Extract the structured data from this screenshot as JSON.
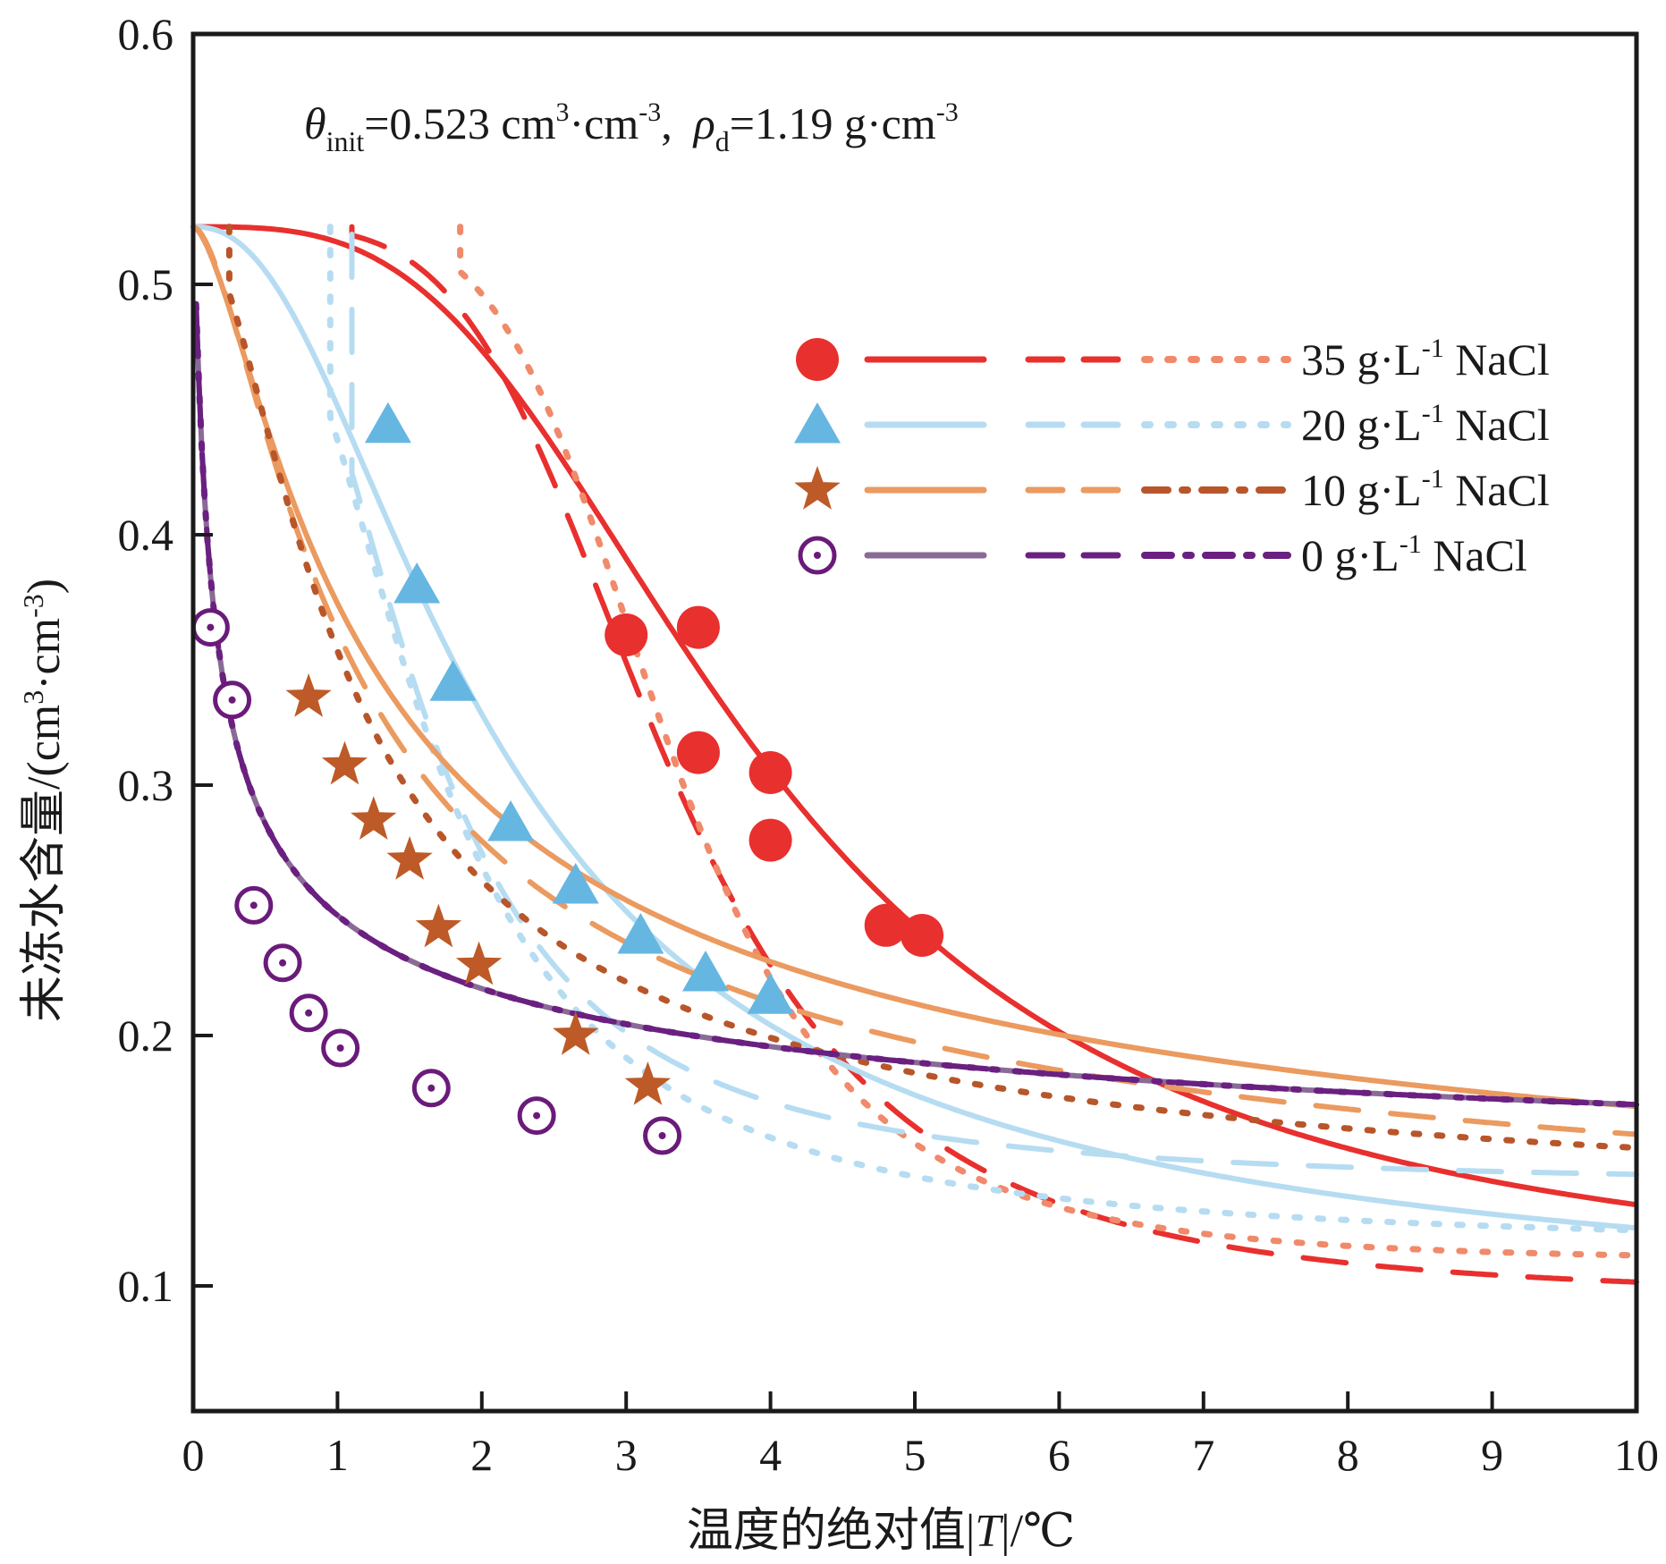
{
  "chart_data": {
    "type": "scatter",
    "xlabel": "温度的绝对值|T|/℃",
    "xlabel_parts": [
      "温度的绝对值|",
      "T",
      "|/℃"
    ],
    "ylabel": "未冻水含量/(cm³·cm⁻³)",
    "ylabel_parts": [
      "未冻水含量/(cm",
      "3",
      "·cm",
      "-3",
      ")"
    ],
    "xlim": [
      0,
      10
    ],
    "ylim": [
      0.05,
      0.6
    ],
    "xticks": [
      0,
      1,
      2,
      3,
      4,
      5,
      6,
      7,
      8,
      9,
      10
    ],
    "xtick_labels": [
      "0",
      "1",
      "2",
      "3",
      "4",
      "5",
      "6",
      "7",
      "8",
      "9",
      "10"
    ],
    "yticks": [
      0.1,
      0.2,
      0.3,
      0.4,
      0.5,
      0.6
    ],
    "ytick_labels": [
      "0.1",
      "0.2",
      "0.3",
      "0.4",
      "0.5",
      "0.6"
    ],
    "annotation": {
      "text": "θinit=0.523 cm³·cm⁻³, ρd=1.19 g·cm⁻³",
      "theta": "θ",
      "theta_sub": "init",
      "theta_val": "=0.523 cm",
      "sup1": "3",
      "mid": "·cm",
      "sup2": "-3",
      "sep": ",",
      "rho": "ρ",
      "rho_sub": "d",
      "rho_val": "=1.19 g·cm",
      "sup3": "-3"
    },
    "legend": {
      "placement": "upper-right"
    },
    "series": [
      {
        "name": "35 g·L⁻¹ NaCl",
        "label_parts": [
          "35 g·L",
          "-1",
          " NaCl"
        ],
        "marker": "circle",
        "marker_color": "#e8302e",
        "line_colors": [
          "#e8302e",
          "#e8302e",
          "#f08a6a"
        ],
        "points": [
          [
            3.0,
            0.36
          ],
          [
            3.5,
            0.363
          ],
          [
            3.5,
            0.313
          ],
          [
            4.0,
            0.305
          ],
          [
            4.0,
            0.278
          ],
          [
            4.8,
            0.244
          ],
          [
            5.05,
            0.24
          ]
        ],
        "fits": [
          {
            "style": "solid",
            "model": "vg",
            "params": {
              "r": 0.095,
              "s": 0.523,
              "a": 0.3,
              "n": 3.2
            }
          },
          {
            "style": "dashed",
            "model": "vg",
            "params": {
              "r": 0.095,
              "s": 0.523,
              "a": 0.33,
              "n": 4.5
            },
            "start": 1.1,
            "startY": 0.523
          },
          {
            "style": "dotted",
            "model": "vg",
            "params": {
              "r": 0.11,
              "s": 0.523,
              "a": 0.32,
              "n": 5.5
            },
            "start": 1.85,
            "startY": 0.523
          }
        ]
      },
      {
        "name": "20 g·L⁻¹ NaCl",
        "label_parts": [
          "20 g·L",
          "-1",
          " NaCl"
        ],
        "marker": "triangle",
        "marker_color": "#66b6e2",
        "line_colors": [
          "#b6dcf2",
          "#b6dcf2",
          "#b6dcf2"
        ],
        "points": [
          [
            1.35,
            0.444
          ],
          [
            1.55,
            0.38
          ],
          [
            1.8,
            0.341
          ],
          [
            2.2,
            0.285
          ],
          [
            2.65,
            0.26
          ],
          [
            3.1,
            0.24
          ],
          [
            3.55,
            0.225
          ],
          [
            4.0,
            0.216
          ]
        ],
        "fits": [
          {
            "style": "solid",
            "model": "vg",
            "params": {
              "r": 0.085,
              "s": 0.523,
              "a": 0.65,
              "n": 2.3
            }
          },
          {
            "style": "dashed",
            "model": "vg",
            "params": {
              "r": 0.14,
              "s": 0.523,
              "a": 0.75,
              "n": 3.2
            },
            "start": 1.1,
            "startY": 0.52
          },
          {
            "style": "dotted",
            "model": "vg",
            "params": {
              "r": 0.115,
              "s": 0.523,
              "a": 0.75,
              "n": 3.0
            },
            "start": 0.95,
            "startY": 0.523
          }
        ]
      },
      {
        "name": "10 g·L⁻¹ NaCl",
        "label_parts": [
          "10 g·L",
          "-1",
          " NaCl"
        ],
        "marker": "star",
        "marker_color": "#bd5a27",
        "line_colors": [
          "#eb9a60",
          "#eb9a60",
          "#b8562a"
        ],
        "points": [
          [
            0.8,
            0.335
          ],
          [
            1.05,
            0.308
          ],
          [
            1.25,
            0.286
          ],
          [
            1.5,
            0.27
          ],
          [
            1.7,
            0.243
          ],
          [
            1.98,
            0.228
          ],
          [
            2.65,
            0.2
          ],
          [
            3.15,
            0.18
          ]
        ],
        "fits": [
          {
            "style": "solid",
            "model": "vg",
            "params": {
              "r": 0.09,
              "s": 0.523,
              "a": 1.6,
              "n": 1.6
            }
          },
          {
            "style": "dashed",
            "model": "vg",
            "params": {
              "r": 0.1,
              "s": 0.523,
              "a": 1.6,
              "n": 1.7
            }
          },
          {
            "style": "dotted",
            "model": "vg",
            "params": {
              "r": 0.12,
              "s": 0.523,
              "a": 1.5,
              "n": 1.9
            },
            "start": 0.25,
            "startY": 0.523
          }
        ]
      },
      {
        "name": "0 g·L⁻¹ NaCl",
        "label_parts": [
          "0 g·L",
          "-1",
          " NaCl"
        ],
        "marker": "circle-dot",
        "marker_color": "#6a1b7a",
        "line_colors": [
          "#8a6a96",
          "#6a2080",
          "#6a2080"
        ],
        "points": [
          [
            0.12,
            0.363
          ],
          [
            0.27,
            0.334
          ],
          [
            0.42,
            0.252
          ],
          [
            0.62,
            0.229
          ],
          [
            0.8,
            0.209
          ],
          [
            1.02,
            0.195
          ],
          [
            1.65,
            0.179
          ],
          [
            2.38,
            0.168
          ],
          [
            3.25,
            0.16
          ]
        ],
        "fits": [
          {
            "style": "solid",
            "model": "vg",
            "params": {
              "r": 0.111,
              "s": 0.523,
              "a": 23.0,
              "n": 1.35
            },
            "start": 0.02
          },
          {
            "style": "dashed",
            "model": "vg",
            "params": {
              "r": 0.111,
              "s": 0.523,
              "a": 23.0,
              "n": 1.35
            },
            "start": 0.02
          },
          {
            "style": "dotted",
            "model": "vg",
            "params": {
              "r": 0.111,
              "s": 0.523,
              "a": 23.0,
              "n": 1.35
            },
            "start": 0.02
          }
        ]
      }
    ]
  }
}
